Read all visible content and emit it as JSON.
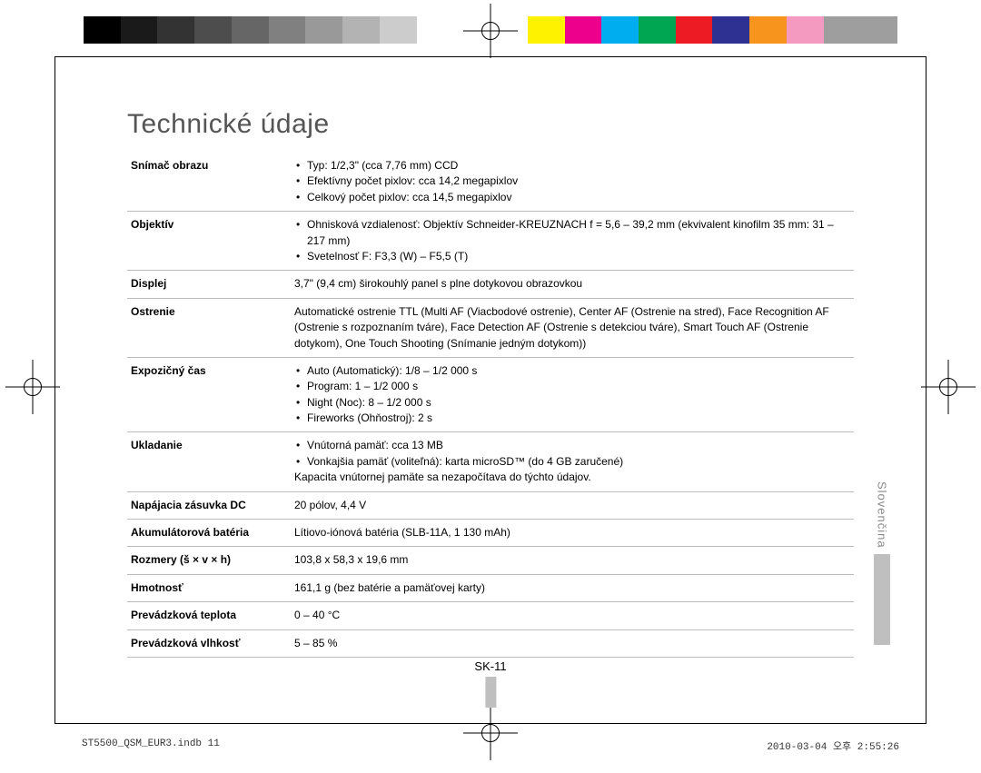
{
  "title": "Technické údaje",
  "language_tab": "Slovenčina",
  "page_number": "SK-11",
  "footer_left": "ST5500_QSM_EUR3.indb   11",
  "footer_right": "2010-03-04   오후 2:55:26",
  "colorbar": {
    "background": "#ffffff",
    "swatches": [
      "#000000",
      "#1a1a1a",
      "#333333",
      "#4d4d4d",
      "#666666",
      "#808080",
      "#999999",
      "#b3b3b3",
      "#cccccc",
      "#ffffff",
      "#ffffff",
      "#ffffff",
      "#fff200",
      "#ec008c",
      "#00aeef",
      "#00a651",
      "#ed1c24",
      "#2e3192",
      "#f7941d",
      "#f49ac1",
      "#9e9e9e",
      "#9e9e9e"
    ]
  },
  "specs": [
    {
      "label": "Snímač obrazu",
      "bullets": [
        "Typ: 1/2,3\" (cca 7,76 mm) CCD",
        "Efektívny počet pixlov: cca 14,2 megapixlov",
        "Celkový počet pixlov: cca 14,5 megapixlov"
      ]
    },
    {
      "label": "Objektív",
      "bullets": [
        "Ohnisková vzdialenosť: Objektív Schneider-KREUZNACH\nf = 5,6 – 39,2 mm (ekvivalent kinofilm 35 mm: 31 – 217 mm)",
        "Svetelnosť F: F3,3 (W) – F5,5 (T)"
      ]
    },
    {
      "label": "Displej",
      "text": "3,7\" (9,4 cm) širokouhlý panel s plne dotykovou obrazovkou"
    },
    {
      "label": "Ostrenie",
      "text": "Automatické ostrenie TTL (Multi AF (Viacbodové ostrenie), Center AF (Ostrenie na stred), Face Recognition AF (Ostrenie s rozpoznaním tváre), Face Detection AF (Ostrenie s detekciou tváre), Smart Touch AF (Ostrenie dotykom), One Touch Shooting (Snímanie jedným dotykom))"
    },
    {
      "label": "Expozičný čas",
      "bullets": [
        "Auto (Automatický): 1/8 – 1/2 000 s",
        "Program: 1 – 1/2 000 s",
        "Night (Noc): 8 – 1/2 000 s",
        "Fireworks (Ohňostroj): 2 s"
      ]
    },
    {
      "label": "Ukladanie",
      "bullets": [
        "Vnútorná pamäť: cca 13 MB",
        "Vonkajšia pamäť (voliteľná): karta microSD™ (do 4 GB zaručené)"
      ],
      "note": "Kapacita vnútornej pamäte sa nezapočítava do týchto údajov."
    },
    {
      "label": "Napájacia zásuvka DC",
      "text": "20 pólov, 4,4 V"
    },
    {
      "label": "Akumulátorová batéria",
      "text": "Lítiovo-iónová batéria (SLB-11A, 1 130 mAh)"
    },
    {
      "label": "Rozmery (š × v × h)",
      "text": "103,8 x 58,3 x 19,6 mm"
    },
    {
      "label": "Hmotnosť",
      "text": "161,1 g (bez batérie a pamäťovej karty)"
    },
    {
      "label": "Prevádzková teplota",
      "text": "0 – 40 °C"
    },
    {
      "label": "Prevádzková vlhkosť",
      "text": "5 – 85 %"
    }
  ]
}
